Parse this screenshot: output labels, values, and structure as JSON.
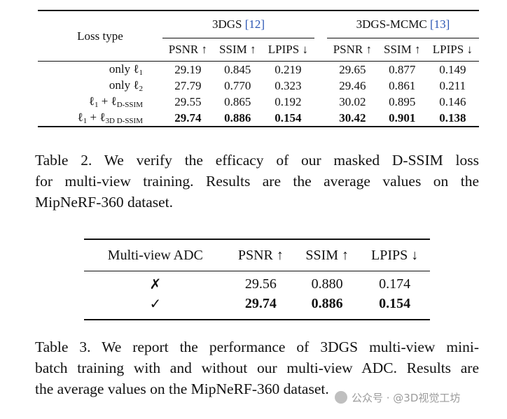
{
  "table2": {
    "row_header": "Loss type",
    "groups": [
      {
        "name": "3DGS",
        "cite": "[12]"
      },
      {
        "name": "3DGS-MCMC",
        "cite": "[13]"
      }
    ],
    "metrics": [
      "PSNR ↑",
      "SSIM ↑",
      "LPIPS ↓"
    ],
    "rows": [
      {
        "loss_pre": "only ℓ",
        "loss_sub": "1",
        "values": [
          "29.19",
          "0.845",
          "0.219",
          "29.65",
          "0.877",
          "0.149"
        ],
        "bold": false
      },
      {
        "loss_pre": "only ℓ",
        "loss_sub": "2",
        "values": [
          "27.79",
          "0.770",
          "0.323",
          "29.46",
          "0.861",
          "0.211"
        ],
        "bold": false
      },
      {
        "loss_pre": "ℓ",
        "loss_sub": "1",
        "loss_mid": " + ℓ",
        "loss_sub2": "D-SSIM",
        "values": [
          "29.55",
          "0.865",
          "0.192",
          "30.02",
          "0.895",
          "0.146"
        ],
        "bold": false
      },
      {
        "loss_pre": "ℓ",
        "loss_sub": "1",
        "loss_mid": " + ℓ",
        "loss_sub2": "3D D-SSIM",
        "values": [
          "29.74",
          "0.886",
          "0.154",
          "30.42",
          "0.901",
          "0.138"
        ],
        "bold": true
      }
    ],
    "caption_lines": [
      "Table 2.  We verify the efficacy of our masked D-SSIM loss",
      "for multi-view training.  Results are the average values on the",
      "MipNeRF-360 dataset."
    ]
  },
  "table3": {
    "headers": [
      "Multi-view ADC",
      "PSNR ↑",
      "SSIM ↑",
      "LPIPS ↓"
    ],
    "rows": [
      {
        "adc": "✗",
        "values": [
          "29.56",
          "0.880",
          "0.174"
        ],
        "bold": false
      },
      {
        "adc": "✓",
        "values": [
          "29.74",
          "0.886",
          "0.154"
        ],
        "bold": true
      }
    ],
    "caption_lines": [
      "Table 3.  We report the performance of 3DGS multi-view mini-",
      "batch training with and without our multi-view ADC. Results are",
      "the average values on the MipNeRF-360 dataset."
    ]
  },
  "watermark": "公众号 · @3D视觉工坊"
}
